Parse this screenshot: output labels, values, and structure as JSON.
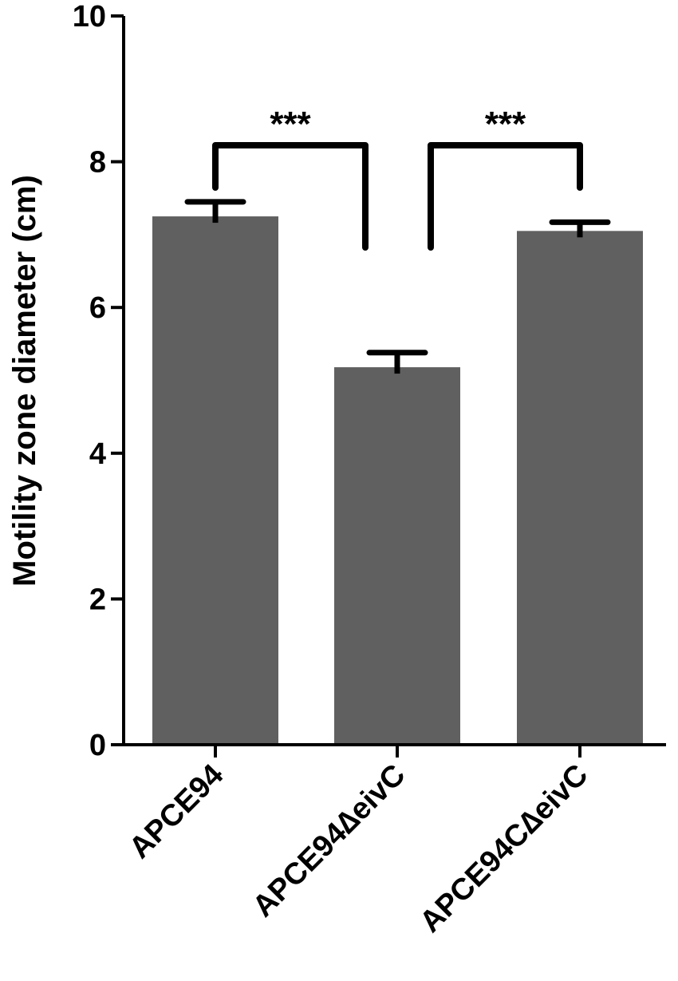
{
  "chart_data": {
    "type": "bar",
    "title": "",
    "xlabel": "",
    "ylabel": "Motility zone diameter (cm)",
    "ylim": [
      0,
      10
    ],
    "yticks": [
      "0",
      "2",
      "4",
      "6",
      "8",
      "10"
    ],
    "categories": [
      "APCE94",
      "APCE94∆eivC",
      "APCE94C∆eivC"
    ],
    "values": [
      7.25,
      5.18,
      7.05
    ],
    "errors": [
      0.2,
      0.2,
      0.12
    ],
    "bar_color": "#606060",
    "grid": false,
    "legend": "none",
    "significance": [
      {
        "from": 0,
        "to": 1,
        "label": "***"
      },
      {
        "from": 1,
        "to": 2,
        "label": "***"
      }
    ]
  }
}
